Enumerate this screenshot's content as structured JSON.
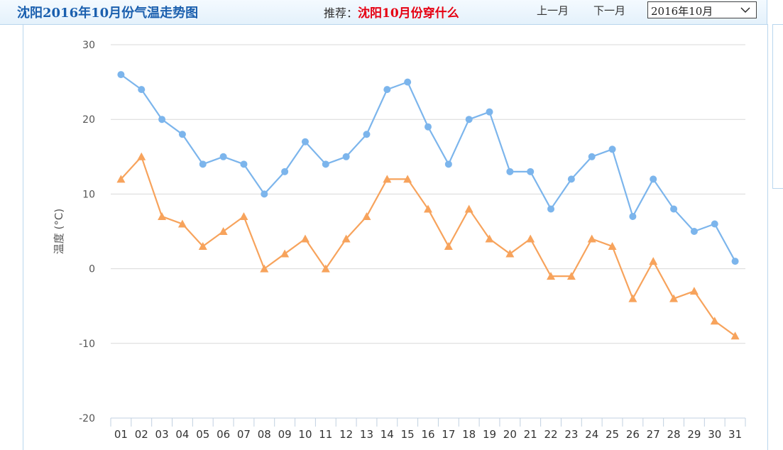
{
  "header": {
    "title": "沈阳2016年10月份气温走势图",
    "recommend_label": "推荐：",
    "recommend_link": "沈阳10月份穿什么",
    "prev_month": "上一月",
    "next_month": "下一月",
    "month_select": "2016年10月"
  },
  "colors": {
    "high": "#7cb5ec",
    "low": "#f7a35c"
  },
  "chart_data": {
    "type": "line",
    "title": "",
    "xlabel": "",
    "ylabel": "温度 (°C)",
    "ylim": [
      -20,
      30
    ],
    "yticks": [
      30,
      20,
      10,
      0,
      -10,
      -20
    ],
    "categories": [
      "01",
      "02",
      "03",
      "04",
      "05",
      "06",
      "07",
      "08",
      "09",
      "10",
      "11",
      "12",
      "13",
      "14",
      "15",
      "16",
      "17",
      "18",
      "19",
      "20",
      "21",
      "22",
      "23",
      "24",
      "25",
      "26",
      "27",
      "28",
      "29",
      "30",
      "31"
    ],
    "grid": true,
    "legend": "none",
    "series": [
      {
        "marker": "circle",
        "color": "#7cb5ec",
        "values": [
          26,
          24,
          20,
          18,
          14,
          15,
          14,
          10,
          13,
          17,
          14,
          15,
          18,
          24,
          25,
          19,
          14,
          20,
          21,
          13,
          13,
          8,
          12,
          15,
          16,
          7,
          12,
          8,
          5,
          6,
          1
        ]
      },
      {
        "marker": "triangle",
        "color": "#f7a35c",
        "values": [
          12,
          15,
          7,
          6,
          3,
          5,
          7,
          0,
          2,
          4,
          0,
          4,
          7,
          12,
          12,
          8,
          3,
          8,
          4,
          2,
          4,
          -1,
          -1,
          4,
          3,
          -4,
          1,
          -4,
          -3,
          -7,
          -9
        ]
      }
    ]
  }
}
